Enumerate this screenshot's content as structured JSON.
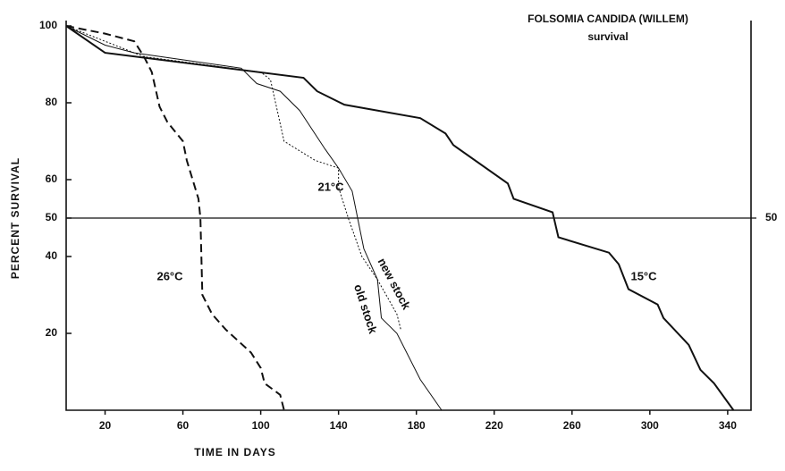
{
  "chart_data": {
    "type": "line",
    "title": "FOLSOMIA  CANDIDA  (WILLEM)",
    "subtitle": "survival",
    "x_label": "TIME   IN   DAYS",
    "y_label": "PERCENT   SURVIVAL",
    "xlim": [
      0,
      352
    ],
    "ylim": [
      0,
      100
    ],
    "xticks": [
      20,
      60,
      100,
      140,
      180,
      220,
      260,
      300,
      340
    ],
    "yticks": [
      20,
      40,
      50,
      60,
      80,
      100
    ],
    "reference_line": {
      "value": 50,
      "label": "50"
    },
    "annotations": [
      "26°C",
      "21°C",
      "15°C",
      "new stock",
      "old stock"
    ],
    "series": [
      {
        "name": "15°C",
        "color": "#111",
        "line_style": "solid",
        "width": 2,
        "x": [
          0,
          20,
          122,
          129,
          143,
          182,
          195,
          199,
          227,
          230,
          250,
          253,
          279,
          284,
          289,
          304,
          307,
          320,
          326,
          333,
          343
        ],
        "values": [
          100,
          93,
          86.5,
          83,
          79.5,
          76,
          72,
          69,
          59,
          55,
          51.5,
          45,
          41,
          38,
          31.5,
          27.5,
          24,
          17,
          10.5,
          7,
          0
        ]
      },
      {
        "name": "old stock",
        "color": "#111",
        "line_style": "solid",
        "width": 1,
        "x": [
          0,
          20,
          35,
          90,
          98,
          110,
          120,
          133,
          140,
          147,
          149,
          153,
          160,
          162,
          170,
          182,
          193
        ],
        "values": [
          100,
          95,
          93,
          89,
          85,
          83,
          78,
          68,
          63,
          57,
          52,
          42,
          34,
          24,
          20,
          8,
          0
        ]
      },
      {
        "name": "new stock",
        "color": "#111",
        "line_style": "dotted",
        "width": 1,
        "x": [
          0,
          20,
          40,
          100,
          105,
          112,
          128,
          140,
          140,
          145,
          152,
          160,
          170,
          172
        ],
        "values": [
          100,
          96,
          92,
          88,
          86,
          70,
          65,
          63,
          58,
          50,
          40,
          34,
          25,
          21
        ]
      },
      {
        "name": "26°C",
        "color": "#111",
        "line_style": "dashed",
        "width": 2,
        "x": [
          0,
          20,
          35,
          40,
          44,
          48,
          52,
          60,
          62,
          65,
          68,
          69,
          70,
          75,
          82,
          95,
          100,
          102,
          110,
          112
        ],
        "values": [
          100,
          98,
          96,
          92,
          88,
          79,
          75,
          70,
          65,
          60,
          55,
          50,
          30,
          25,
          21,
          15,
          11,
          7,
          4,
          0
        ]
      }
    ]
  }
}
